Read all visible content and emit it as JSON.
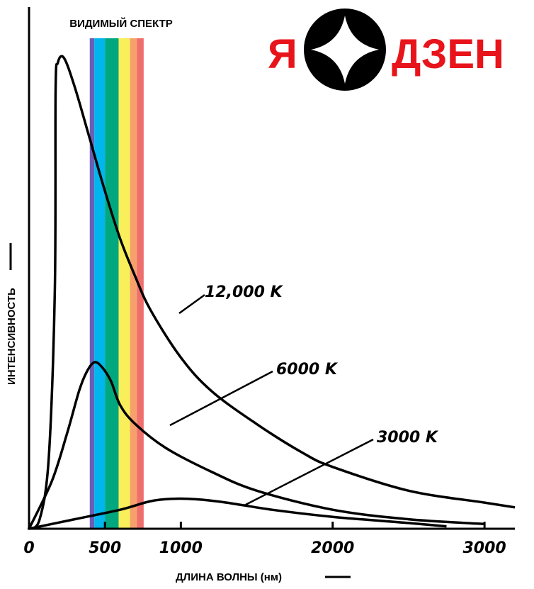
{
  "logo": {
    "left_text": "Я",
    "right_text": "ДЗЕН",
    "icon": "four-point-star-in-circle-icon",
    "text_color": "#e8141b",
    "circle_color": "#000000"
  },
  "chart_data": {
    "type": "line",
    "title": "",
    "xlabel": "ДЛИНА ВОЛНЫ (нм)",
    "ylabel": "ИНТЕНСИВНОСТЬ",
    "xlim": [
      0,
      3200
    ],
    "ylim": [
      0,
      1
    ],
    "x_ticks": [
      0,
      500,
      1000,
      2000,
      3000
    ],
    "x_tick_labels": [
      "0",
      "500",
      "1000",
      "2000",
      "3000"
    ],
    "grid": false,
    "visible_spectrum": {
      "label": "ВИДИМЫЙ СПЕКТР",
      "bands": [
        {
          "from": 400,
          "to": 430,
          "color": "#6b5fb5"
        },
        {
          "from": 430,
          "to": 500,
          "color": "#00b6ee"
        },
        {
          "from": 500,
          "to": 590,
          "color": "#00a77f"
        },
        {
          "from": 590,
          "to": 665,
          "color": "#f8ef5a"
        },
        {
          "from": 665,
          "to": 710,
          "color": "#f6a06b"
        },
        {
          "from": 710,
          "to": 755,
          "color": "#ef6f6c"
        }
      ]
    },
    "series": [
      {
        "name": "12,000 K",
        "color": "#000000",
        "points": [
          [
            0,
            0
          ],
          [
            70,
            0.02
          ],
          [
            130,
            0.15
          ],
          [
            170,
            0.5
          ],
          [
            175,
            0.92
          ],
          [
            190,
            0.98
          ],
          [
            230,
            0.99
          ],
          [
            300,
            0.93
          ],
          [
            400,
            0.82
          ],
          [
            500,
            0.71
          ],
          [
            600,
            0.61
          ],
          [
            700,
            0.53
          ],
          [
            800,
            0.46
          ],
          [
            1000,
            0.36
          ],
          [
            1200,
            0.29
          ],
          [
            1500,
            0.22
          ],
          [
            1800,
            0.16
          ],
          [
            2000,
            0.13
          ],
          [
            2500,
            0.08
          ],
          [
            3000,
            0.055
          ],
          [
            3200,
            0.045
          ]
        ]
      },
      {
        "name": "6000 K",
        "color": "#000000",
        "points": [
          [
            0,
            0
          ],
          [
            150,
            0.1
          ],
          [
            250,
            0.2
          ],
          [
            330,
            0.29
          ],
          [
            380,
            0.33
          ],
          [
            430,
            0.35
          ],
          [
            480,
            0.34
          ],
          [
            540,
            0.31
          ],
          [
            600,
            0.26
          ],
          [
            700,
            0.22
          ],
          [
            900,
            0.17
          ],
          [
            1200,
            0.12
          ],
          [
            1500,
            0.08
          ],
          [
            2000,
            0.04
          ],
          [
            2500,
            0.02
          ],
          [
            3000,
            0.01
          ]
        ]
      },
      {
        "name": "3000 K",
        "color": "#000000",
        "points": [
          [
            0,
            0
          ],
          [
            300,
            0.02
          ],
          [
            600,
            0.04
          ],
          [
            800,
            0.058
          ],
          [
            950,
            0.063
          ],
          [
            1100,
            0.062
          ],
          [
            1300,
            0.055
          ],
          [
            1600,
            0.04
          ],
          [
            2000,
            0.025
          ],
          [
            2500,
            0.012
          ],
          [
            2750,
            0.005
          ]
        ]
      }
    ],
    "annotations": [
      {
        "text": "12,000 K",
        "series": "12,000 K"
      },
      {
        "text": "6000 K",
        "series": "6000 K"
      },
      {
        "text": "3000 K",
        "series": "3000 K"
      }
    ]
  }
}
